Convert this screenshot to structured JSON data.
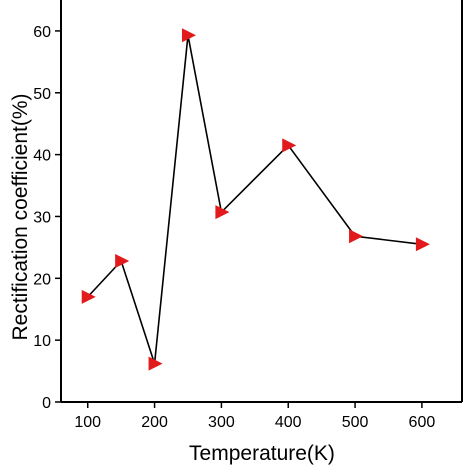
{
  "chart_data": {
    "type": "line",
    "xlabel": "Temperature(K)",
    "ylabel": "Rectification coefficient(%)",
    "xlim": [
      60,
      660
    ],
    "ylim": [
      0,
      65
    ],
    "xticks": [
      100,
      200,
      300,
      400,
      500,
      600
    ],
    "yticks": [
      0,
      10,
      20,
      30,
      40,
      50,
      60
    ],
    "grid": false,
    "legend": "none",
    "series": [
      {
        "marker": "triangle-right",
        "marker_color": "#e31a1c",
        "line_color": "#000000",
        "x": [
          100,
          150,
          200,
          250,
          300,
          400,
          500,
          600
        ],
        "y": [
          17,
          22.8,
          6.2,
          59.3,
          30.7,
          41.5,
          26.8,
          25.5
        ]
      }
    ]
  }
}
